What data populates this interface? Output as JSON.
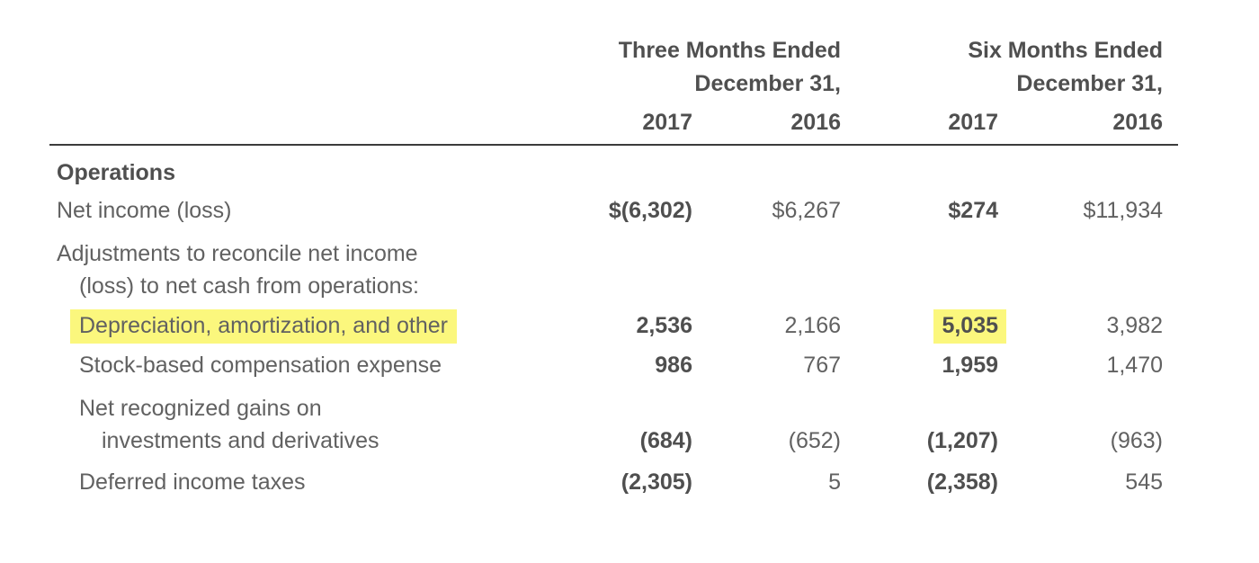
{
  "header": {
    "groups": [
      {
        "line1": "Three Months Ended",
        "line2": "December 31,",
        "years": [
          "2017",
          "2016"
        ]
      },
      {
        "line1": "Six Months Ended",
        "line2": "December 31,",
        "years": [
          "2017",
          "2016"
        ]
      }
    ]
  },
  "section_title": "Operations",
  "rows": {
    "net_income": {
      "label": "Net income (loss)",
      "v0": "$(6,302)",
      "v1": "$6,267",
      "v2": "$274",
      "v3": "$11,934"
    },
    "adjustments": {
      "label_line1": "Adjustments to reconcile net income",
      "label_line2": "(loss) to net cash from operations:"
    },
    "depreciation": {
      "label": "Depreciation, amortization, and other",
      "v0": "2,536",
      "v1": "2,166",
      "v2": "5,035",
      "v3": "3,982",
      "label_highlighted": true,
      "highlighted_value_column": "six_months_2017"
    },
    "stock_comp": {
      "label": "Stock-based compensation expense",
      "v0": "986",
      "v1": "767",
      "v2": "1,959",
      "v3": "1,470"
    },
    "gains": {
      "label_line1": "Net recognized gains on",
      "label_line2": "investments and derivatives",
      "v0": "(684)",
      "v1": "(652)",
      "v2": "(1,207)",
      "v3": "(963)"
    },
    "deferred_taxes": {
      "label": "Deferred income taxes",
      "v0": "(2,305)",
      "v1": "5",
      "v2": "(2,358)",
      "v3": "545"
    }
  },
  "colors": {
    "highlight_yellow": "#fbf77d",
    "text_regular": "#616161",
    "text_bold": "#4f4f4f",
    "header_rule": "#3b3b3b"
  }
}
